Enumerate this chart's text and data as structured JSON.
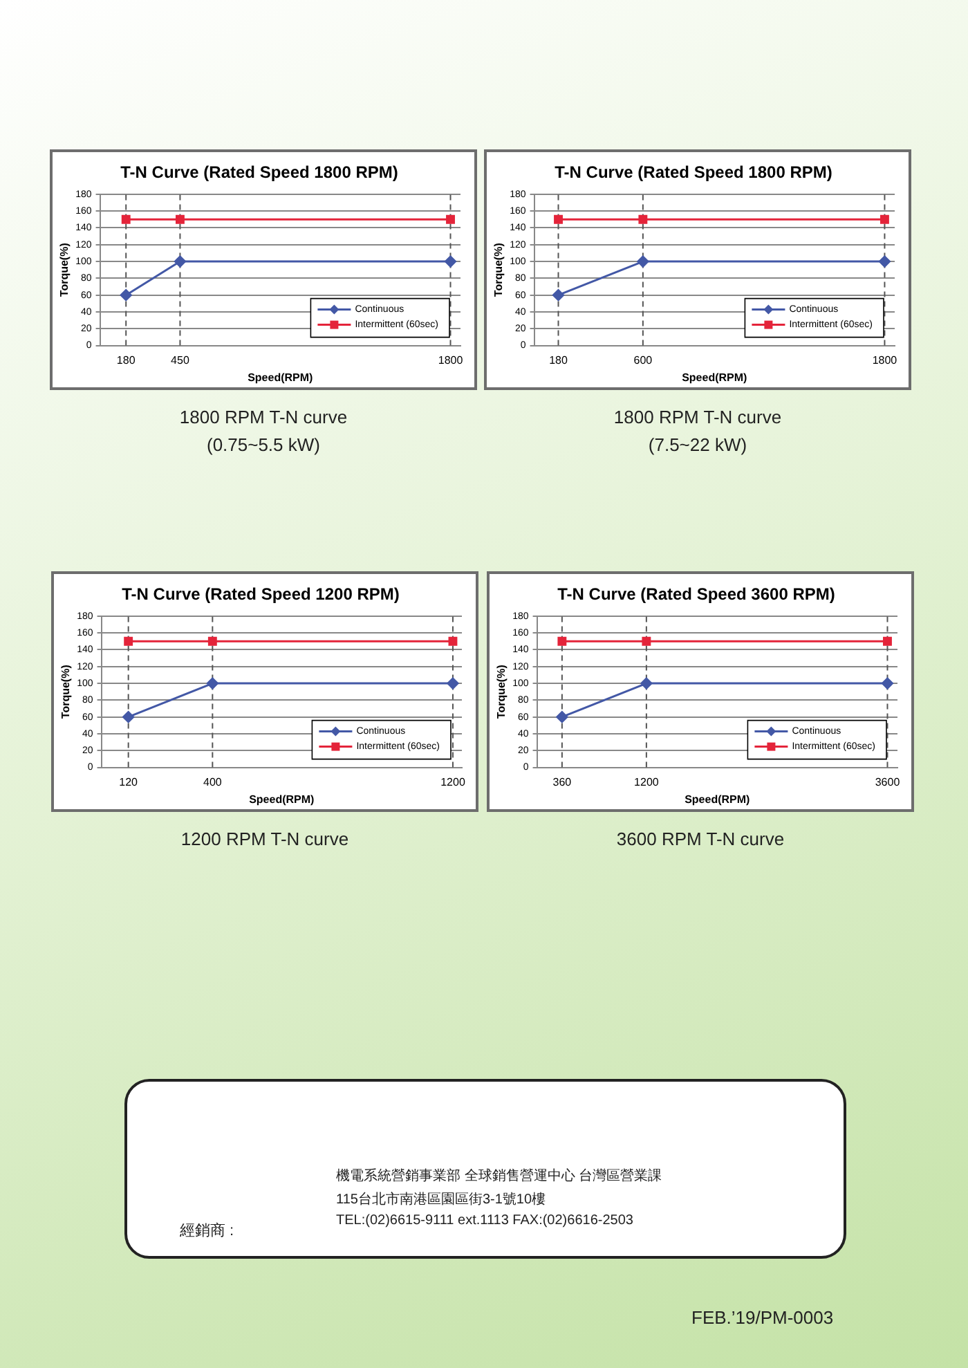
{
  "chart_data": [
    {
      "type": "line",
      "title": "T-N Curve (Rated Speed 1800 RPM)",
      "xlabel": "Speed(RPM)",
      "ylabel": "Torque(%)",
      "x": [
        180,
        450,
        1800
      ],
      "xlim": [
        50,
        1850
      ],
      "xticks": [
        180,
        450,
        1800
      ],
      "ylim": [
        0,
        180
      ],
      "yticks": [
        0,
        20,
        40,
        60,
        80,
        100,
        120,
        140,
        160,
        180
      ],
      "grid": "y",
      "legend": "bottom right",
      "series": [
        {
          "name": "Continuous",
          "color": "#4358a6",
          "marker": "diamond",
          "values": [
            60,
            100,
            100
          ]
        },
        {
          "name": "Intermittent (60sec)",
          "color": "#e4243a",
          "marker": "square",
          "values": [
            150,
            150,
            150
          ]
        }
      ],
      "ref_lines": [
        {
          "axis": "x",
          "value": 180,
          "line_style": "dashed"
        },
        {
          "axis": "x",
          "value": 450,
          "line_style": "dashed"
        },
        {
          "axis": "x",
          "value": 1800,
          "line_style": "dashed"
        }
      ],
      "annotations": [
        "1800 RPM T-N curve",
        "(0.75~5.5 kW)"
      ]
    },
    {
      "type": "line",
      "title": "T-N Curve (Rated Speed 1800 RPM)",
      "xlabel": "Speed(RPM)",
      "ylabel": "Torque(%)",
      "x": [
        180,
        600,
        1800
      ],
      "xlim": [
        60,
        1850
      ],
      "xticks": [
        180,
        600,
        1800
      ],
      "ylim": [
        0,
        180
      ],
      "yticks": [
        0,
        20,
        40,
        60,
        80,
        100,
        120,
        140,
        160,
        180
      ],
      "grid": "y",
      "legend": "bottom right",
      "series": [
        {
          "name": "Continuous",
          "color": "#4358a6",
          "marker": "diamond",
          "values": [
            60,
            100,
            100
          ]
        },
        {
          "name": "Intermittent (60sec)",
          "color": "#e4243a",
          "marker": "square",
          "values": [
            150,
            150,
            150
          ]
        }
      ],
      "ref_lines": [
        {
          "axis": "x",
          "value": 180,
          "line_style": "dashed"
        },
        {
          "axis": "x",
          "value": 600,
          "line_style": "dashed"
        },
        {
          "axis": "x",
          "value": 1800,
          "line_style": "dashed"
        }
      ],
      "annotations": [
        "1800 RPM T-N curve",
        "(7.5~22 kW)"
      ]
    },
    {
      "type": "line",
      "title": "T-N Curve (Rated Speed 1200 RPM)",
      "xlabel": "Speed(RPM)",
      "ylabel": "Torque(%)",
      "x": [
        120,
        400,
        1200
      ],
      "xlim": [
        30,
        1230
      ],
      "xticks": [
        120,
        400,
        1200
      ],
      "ylim": [
        0,
        180
      ],
      "yticks": [
        0,
        20,
        40,
        60,
        80,
        100,
        120,
        140,
        160,
        180
      ],
      "grid": "y",
      "legend": "bottom right",
      "series": [
        {
          "name": "Continuous",
          "color": "#4358a6",
          "marker": "diamond",
          "values": [
            60,
            100,
            100
          ]
        },
        {
          "name": "Intermittent (60sec)",
          "color": "#e4243a",
          "marker": "square",
          "values": [
            150,
            150,
            150
          ]
        }
      ],
      "ref_lines": [
        {
          "axis": "x",
          "value": 120,
          "line_style": "dashed"
        },
        {
          "axis": "x",
          "value": 400,
          "line_style": "dashed"
        },
        {
          "axis": "x",
          "value": 1200,
          "line_style": "dashed"
        }
      ],
      "annotations": [
        "1200 RPM T-N curve"
      ]
    },
    {
      "type": "line",
      "title": "T-N Curve (Rated Speed 3600 RPM)",
      "xlabel": "Speed(RPM)",
      "ylabel": "Torque(%)",
      "x": [
        360,
        1200,
        3600
      ],
      "xlim": [
        110,
        3700
      ],
      "xticks": [
        360,
        1200,
        3600
      ],
      "ylim": [
        0,
        180
      ],
      "yticks": [
        0,
        20,
        40,
        60,
        80,
        100,
        120,
        140,
        160,
        180
      ],
      "grid": "y",
      "legend": "bottom right",
      "series": [
        {
          "name": "Continuous",
          "color": "#4358a6",
          "marker": "diamond",
          "values": [
            60,
            100,
            100
          ]
        },
        {
          "name": "Intermittent (60sec)",
          "color": "#e4243a",
          "marker": "square",
          "values": [
            150,
            150,
            150
          ]
        }
      ],
      "ref_lines": [
        {
          "axis": "x",
          "value": 360,
          "line_style": "dashed"
        },
        {
          "axis": "x",
          "value": 1200,
          "line_style": "dashed"
        },
        {
          "axis": "x",
          "value": 3600,
          "line_style": "dashed"
        }
      ],
      "annotations": [
        "3600 RPM T-N curve"
      ]
    },
    {
      "type": "other",
      "annotations": [
        "機電系統營銷事業部 全球銷售營運中心 台灣區營業課",
        "115台北市南港區園區街3-1號10樓",
        "TEL:(02)6615-9111 ext.1113  FAX:(02)6616-2503",
        "經銷商 :",
        "FEB.’19/PM-0003"
      ]
    }
  ]
}
